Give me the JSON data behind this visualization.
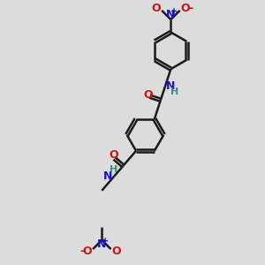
{
  "bg_color": "#dcdcdc",
  "bond_color": "#1a1a1a",
  "N_color": "#1414cc",
  "O_color": "#cc1414",
  "H_color": "#3a8a8a",
  "lw": 1.8,
  "dbo": 0.055,
  "ring_r": 0.72,
  "xlim": [
    0,
    9
  ],
  "ylim": [
    0,
    10
  ]
}
